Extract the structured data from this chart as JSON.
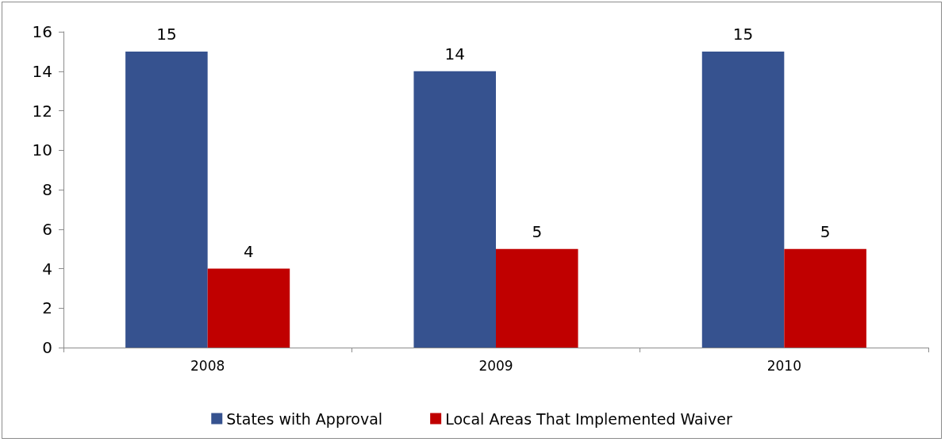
{
  "chart_data": {
    "type": "bar",
    "categories": [
      "2008",
      "2009",
      "2010"
    ],
    "series": [
      {
        "name": "States with Approval",
        "color": "#36528f",
        "values": [
          15,
          14,
          15
        ]
      },
      {
        "name": "Local Areas That Implemented Waiver",
        "color": "#c00000",
        "values": [
          4,
          5,
          5
        ]
      }
    ],
    "ylim": [
      0,
      16
    ],
    "yticks": [
      0,
      2,
      4,
      6,
      8,
      10,
      12,
      14,
      16
    ],
    "grid": false,
    "legend": "bottom",
    "data_labels": true
  }
}
